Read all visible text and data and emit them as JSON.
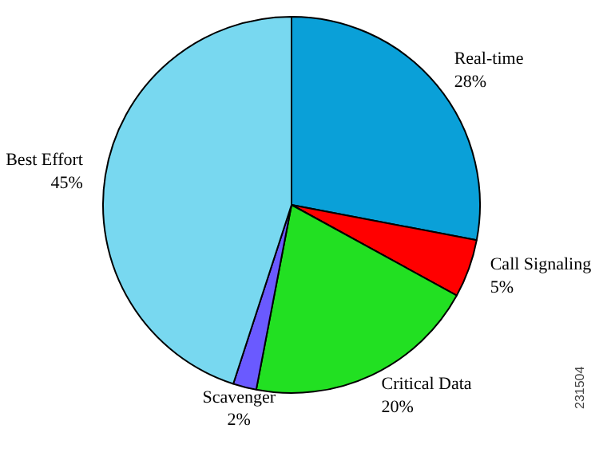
{
  "chart_data": {
    "type": "pie",
    "categories": [
      "Real-time",
      "Call Signaling",
      "Critical Data",
      "Scavenger",
      "Best Effort"
    ],
    "values": [
      28,
      5,
      20,
      2,
      45
    ],
    "value_labels": [
      "28%",
      "5%",
      "20%",
      "2%",
      "45%"
    ],
    "colors": [
      "#0aa0d8",
      "#ff0000",
      "#22e022",
      "#6a5aff",
      "#78d8f0"
    ],
    "annotations": [
      "231504"
    ]
  }
}
